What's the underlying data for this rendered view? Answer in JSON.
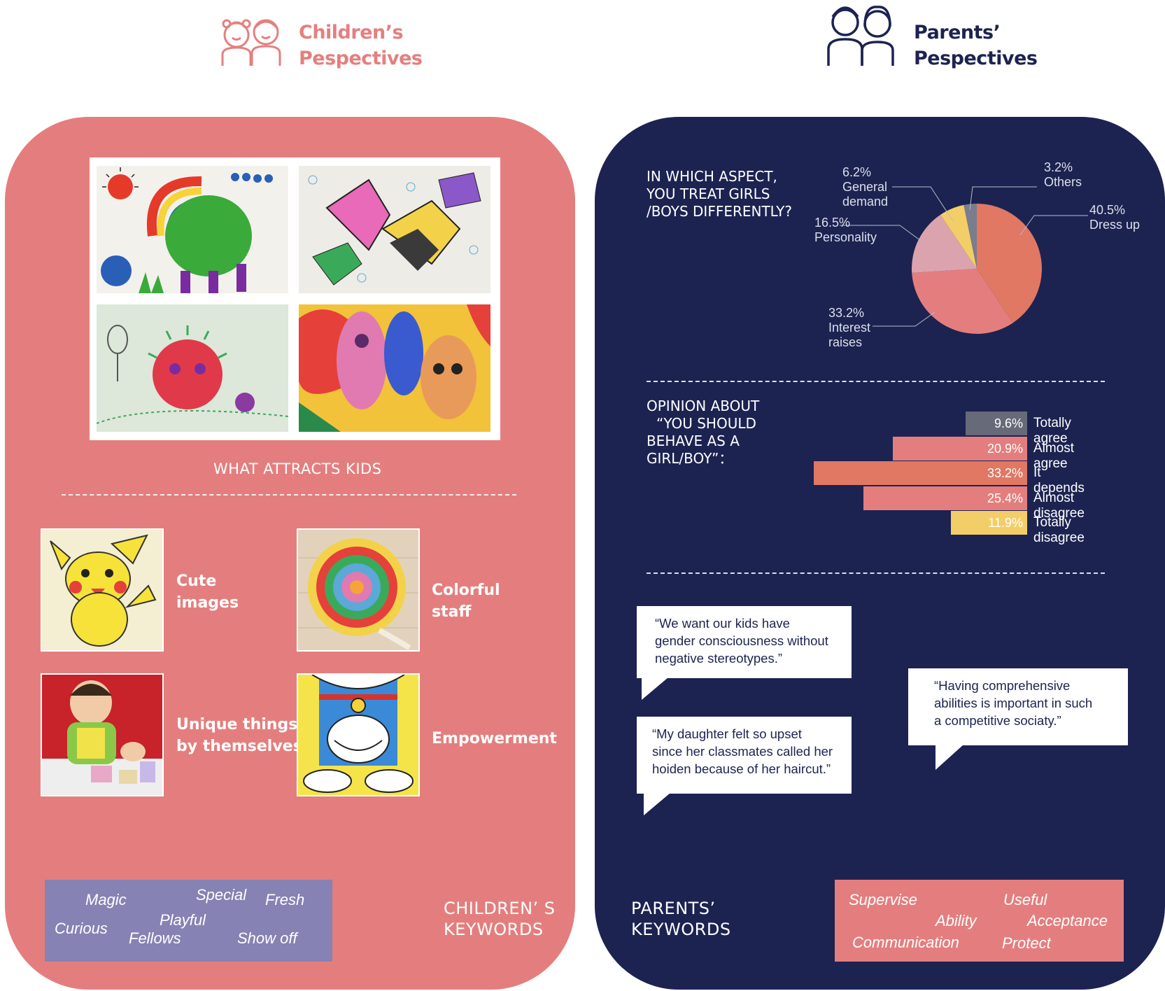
{
  "header": {
    "children_title_line1": "Children’s",
    "children_title_line2": "Pespectives",
    "parents_title_line1": "Parents’",
    "parents_title_line2": "Pespectives"
  },
  "children": {
    "section_label": "WHAT  ATTRACTS  KIDS",
    "attractions": [
      {
        "label_line1": "Cute",
        "label_line2": "images",
        "image": "pikachu"
      },
      {
        "label_line1": "Colorful",
        "label_line2": "staff",
        "image": "lollipop"
      },
      {
        "label_line1": "Unique things",
        "label_line2": "by themselves",
        "image": "child-crafting"
      },
      {
        "label_line1": "Empowerment",
        "label_line2": "",
        "image": "doraemon"
      }
    ],
    "keywords_title_line1": "CHILDREN’ S",
    "keywords_title_line2": "KEYWORDS",
    "keywords": [
      "Magic",
      "Special",
      "Fresh",
      "Curious",
      "Playful",
      "Fellows",
      "Show off"
    ]
  },
  "parents": {
    "pie_question_line1": "IN WHICH ASPECT,",
    "pie_question_line2": "YOU TREAT GIRLS",
    "pie_question_line3": "/BOYS DIFFERENTLY?",
    "bar_question_line1": "OPINION ABOUT",
    "bar_question_line2": "“YOU SHOULD",
    "bar_question_line3": "BEHAVE AS A",
    "bar_question_line4": "GIRL/BOY”：",
    "quotes": [
      {
        "line1": "“We want our kids have",
        "line2": "gender consciousness without",
        "line3": "negative stereotypes.”"
      },
      {
        "line1": "“My daughter felt so upset",
        "line2": "since her classmates called her",
        "line3": "hoiden because of her haircut.”"
      },
      {
        "line1": "“Having comprehensive",
        "line2": "abilities is important in such",
        "line3": "a competitive sociaty.”"
      }
    ],
    "keywords_title_line1": "PARENTS’",
    "keywords_title_line2": "KEYWORDS",
    "keywords": [
      "Supervise",
      "Useful",
      "Ability",
      "Acceptance",
      "Communication",
      "Protect"
    ]
  },
  "colors": {
    "child_panel": "#e47e7e",
    "parent_panel": "#1c2351",
    "keyword_box_child": "#8682b3"
  },
  "chart_data": [
    {
      "type": "pie",
      "title": "IN WHICH ASPECT, YOU TREAT GIRLS /BOYS DIFFERENTLY?",
      "slices": [
        {
          "label": "Dress up",
          "pct_label": "40.5%",
          "value": 40.5,
          "color": "#e07864"
        },
        {
          "label": "Interest raises",
          "pct_label": "33.2%",
          "value": 33.2,
          "color": "#e47e7e"
        },
        {
          "label": "Personality",
          "pct_label": "16.5%",
          "value": 16.5,
          "color": "#dba3ad"
        },
        {
          "label": "General demand",
          "pct_label": "6.2%",
          "value": 6.2,
          "color": "#f3ce68"
        },
        {
          "label": "Others",
          "pct_label": "3.2%",
          "value": 3.2,
          "color": "#7a7d8d"
        }
      ]
    },
    {
      "type": "bar",
      "title": "OPINION ABOUT “YOU SHOULD BEHAVE AS A GIRL/BOY”：",
      "categories": [
        "Totally agree",
        "Almost agree",
        "It depends",
        "Almost disagree",
        "Totally disagree"
      ],
      "values": [
        9.6,
        20.9,
        33.2,
        25.4,
        11.9
      ],
      "value_labels": [
        "9.6%",
        "20.9%",
        "33.2%",
        "25.4%",
        "11.9%"
      ],
      "colors": [
        "#666a79",
        "#e47e7e",
        "#e07864",
        "#e47e7e",
        "#f3ce68"
      ]
    }
  ]
}
